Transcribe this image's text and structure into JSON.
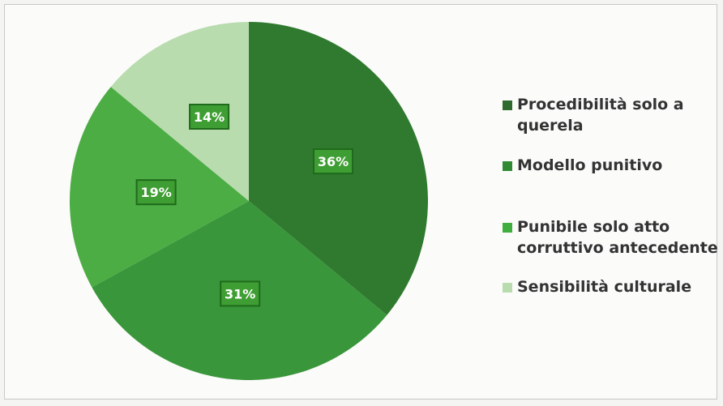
{
  "chart_data": {
    "type": "pie",
    "start_angle_deg": 0,
    "direction": "clockwise",
    "slices": [
      {
        "label": "Procedibilità solo a querela",
        "value": 36,
        "display": "36%",
        "color": "#2f7a2f"
      },
      {
        "label": "Modello punitivo",
        "value": 31,
        "display": "31%",
        "color": "#39963a"
      },
      {
        "label": "Punibile solo atto corruttivo antecedente",
        "value": 19,
        "display": "19%",
        "color": "#4cad44"
      },
      {
        "label": "Sensibilità culturale",
        "value": 14,
        "display": "14%",
        "color": "#b9dcaf"
      }
    ],
    "legend_position": "right"
  },
  "legend": {
    "items": [
      {
        "text": "Procedibilità solo a\nquerela",
        "color": "#2f6b2e"
      },
      {
        "text": "Modello punitivo",
        "color": "#2f8a33"
      },
      {
        "text": "Punibile solo atto\ncorruttivo antecedente",
        "color": "#3fae3d"
      },
      {
        "text": "Sensibilità culturale",
        "color": "#b9dcaf"
      }
    ]
  },
  "label_style": {
    "box_fill": "#3f9e33",
    "box_stroke": "#1f6a1c",
    "text_color": "#ffffff"
  }
}
